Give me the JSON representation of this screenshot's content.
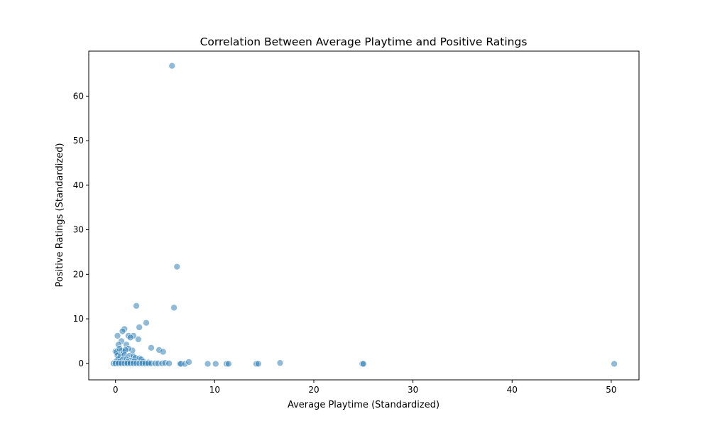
{
  "chart_data": {
    "type": "scatter",
    "title": "Correlation Between Average Playtime and Positive Ratings",
    "xlabel": "Average Playtime (Standardized)",
    "ylabel": "Positive Ratings (Standardized)",
    "xlim": [
      -2.7,
      52.8
    ],
    "ylim": [
      -3.7,
      70.1
    ],
    "xticks": [
      0,
      10,
      20,
      30,
      40,
      50
    ],
    "yticks": [
      0,
      10,
      20,
      30,
      40,
      50,
      60
    ],
    "grid": false,
    "color": "#1f77b4",
    "alpha": 0.5,
    "points": [
      [
        5.7,
        66.8
      ],
      [
        6.2,
        21.7
      ],
      [
        5.9,
        12.5
      ],
      [
        2.1,
        12.9
      ],
      [
        3.1,
        9.1
      ],
      [
        2.4,
        8.1
      ],
      [
        0.9,
        7.7
      ],
      [
        0.7,
        7.2
      ],
      [
        0.2,
        6.2
      ],
      [
        1.3,
        6.2
      ],
      [
        1.8,
        6.2
      ],
      [
        1.5,
        5.8
      ],
      [
        2.3,
        5.4
      ],
      [
        0.6,
        5.0
      ],
      [
        1.1,
        4.2
      ],
      [
        0.3,
        4.2
      ],
      [
        3.6,
        3.5
      ],
      [
        4.4,
        3.0
      ],
      [
        4.8,
        2.6
      ],
      [
        1.7,
        2.9
      ],
      [
        1.3,
        3.3
      ],
      [
        0.0,
        2.7
      ],
      [
        0.1,
        2.5
      ],
      [
        0.6,
        2.8
      ],
      [
        0.8,
        2.6
      ],
      [
        1.0,
        3.0
      ],
      [
        0.4,
        3.3
      ],
      [
        0.2,
        1.8
      ],
      [
        0.5,
        1.6
      ],
      [
        0.9,
        1.9
      ],
      [
        1.4,
        1.7
      ],
      [
        1.8,
        1.6
      ],
      [
        2.0,
        1.2
      ],
      [
        2.4,
        1.1
      ],
      [
        2.6,
        0.9
      ],
      [
        0.3,
        1.0
      ],
      [
        0.7,
        0.8
      ],
      [
        1.1,
        0.9
      ],
      [
        1.5,
        0.6
      ],
      [
        1.9,
        0.5
      ],
      [
        2.8,
        0.4
      ],
      [
        0.1,
        0.5
      ],
      [
        0.4,
        0.3
      ],
      [
        1.2,
        0.3
      ],
      [
        3.3,
        0.2
      ],
      [
        -0.2,
        0.0
      ],
      [
        0.0,
        0.0
      ],
      [
        0.3,
        0.0
      ],
      [
        0.6,
        0.0
      ],
      [
        0.9,
        0.0
      ],
      [
        1.2,
        0.0
      ],
      [
        1.5,
        0.0
      ],
      [
        1.8,
        0.0
      ],
      [
        2.1,
        0.0
      ],
      [
        2.4,
        0.0
      ],
      [
        2.7,
        0.0
      ],
      [
        3.0,
        0.0
      ],
      [
        3.3,
        0.0
      ],
      [
        3.6,
        0.0
      ],
      [
        4.0,
        0.0
      ],
      [
        4.3,
        0.0
      ],
      [
        4.7,
        0.0
      ],
      [
        5.0,
        0.1
      ],
      [
        5.4,
        0.0
      ],
      [
        6.5,
        -0.1
      ],
      [
        6.6,
        -0.1
      ],
      [
        7.0,
        -0.1
      ],
      [
        7.4,
        0.3
      ],
      [
        9.3,
        -0.1
      ],
      [
        10.1,
        -0.1
      ],
      [
        11.2,
        -0.1
      ],
      [
        11.4,
        -0.1
      ],
      [
        14.2,
        -0.1
      ],
      [
        14.4,
        -0.1
      ],
      [
        16.6,
        0.1
      ],
      [
        24.9,
        -0.1
      ],
      [
        25.0,
        -0.1
      ],
      [
        50.3,
        -0.1
      ]
    ]
  }
}
